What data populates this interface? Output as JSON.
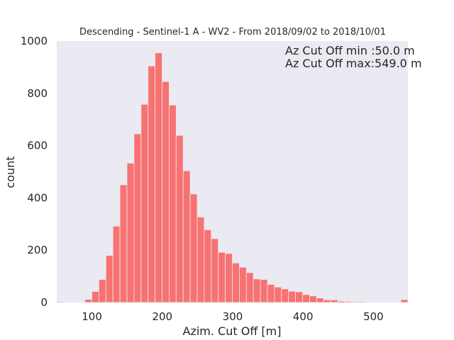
{
  "chart_data": {
    "type": "bar",
    "title": "Descending - Sentinel-1 A - WV2 - From 2018/09/02 to 2018/10/01",
    "xlabel": "Azim. Cut Off [m]",
    "ylabel": "count",
    "xlim": [
      50,
      549
    ],
    "ylim": [
      0,
      1000
    ],
    "xticks": [
      100,
      200,
      300,
      400,
      500
    ],
    "yticks": [
      0,
      200,
      400,
      600,
      800,
      1000
    ],
    "grid": false,
    "bar_color": "#f87272",
    "background_color": "#eaeaf2",
    "bin_edges": [
      50,
      59.98,
      69.96,
      79.94,
      89.92,
      99.9,
      109.88,
      119.86,
      129.84,
      139.82,
      149.8,
      159.78,
      169.76,
      179.74,
      189.72,
      199.7,
      209.68,
      219.66,
      229.64,
      239.62,
      249.6,
      259.58,
      269.56,
      279.54,
      289.52,
      299.5,
      309.48,
      319.46,
      329.44,
      339.42,
      349.4,
      359.38,
      369.36,
      379.34,
      389.32,
      399.3,
      409.28,
      419.26,
      429.24,
      439.22,
      449.2,
      459.18,
      469.16,
      479.14,
      489.12,
      499.1,
      509.08,
      519.06,
      529.04,
      539.02,
      549
    ],
    "values": [
      3,
      1,
      2,
      2,
      12,
      42,
      88,
      180,
      292,
      450,
      533,
      645,
      758,
      905,
      955,
      845,
      755,
      639,
      504,
      415,
      327,
      278,
      244,
      192,
      187,
      151,
      135,
      114,
      90,
      88,
      69,
      59,
      52,
      43,
      41,
      30,
      25,
      17,
      10,
      10,
      5,
      4,
      3,
      3,
      2,
      2,
      2,
      2,
      2,
      11
    ],
    "annotations": [
      "Az Cut Off min :50.0 m",
      "Az Cut Off max:549.0 m"
    ]
  }
}
